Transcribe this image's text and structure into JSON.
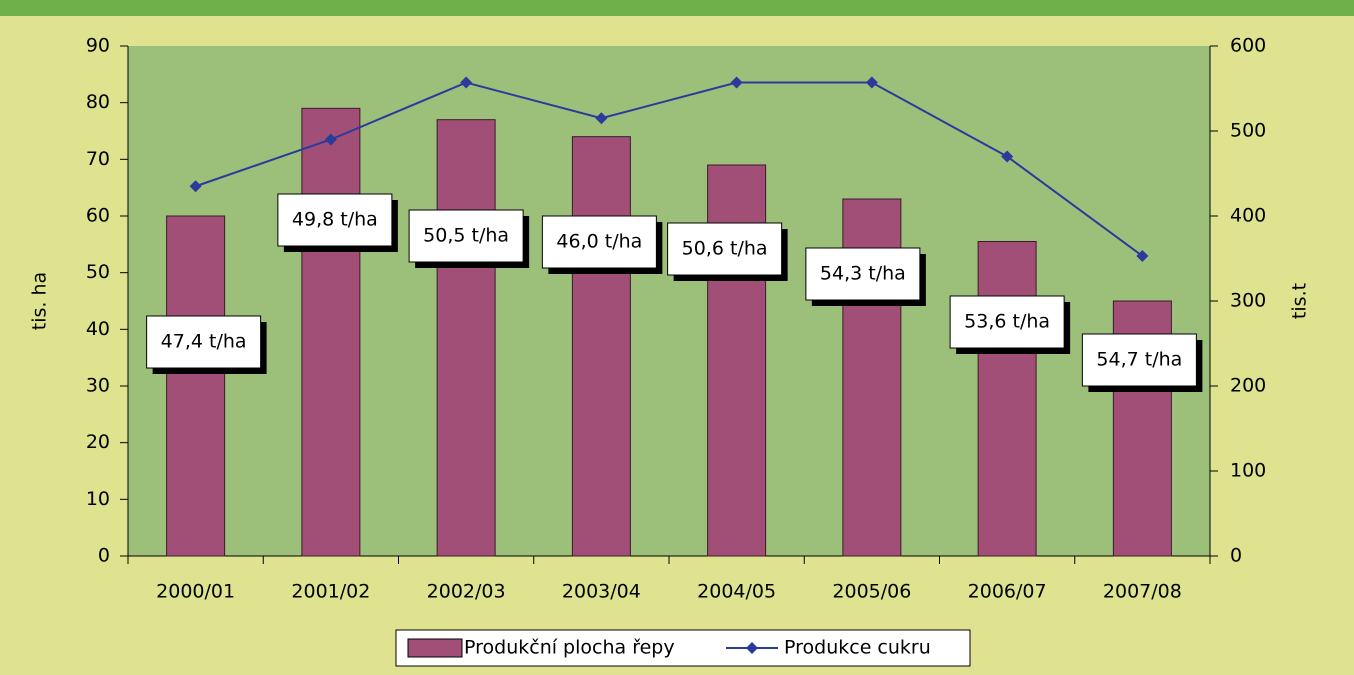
{
  "chart_data": {
    "type": "bar_line",
    "categories": [
      "2000/01",
      "2001/02",
      "2002/03",
      "2003/04",
      "2004/05",
      "2005/06",
      "2006/07",
      "2007/08"
    ],
    "series": [
      {
        "name": "Produkční plocha řepy",
        "type": "bar",
        "color": "#a24f78",
        "values": [
          60,
          79,
          77,
          74,
          69,
          63,
          55.5,
          45
        ]
      },
      {
        "name": "Produkce cukru",
        "type": "line",
        "axis": "y2",
        "color": "#2a3b9c",
        "values": [
          435,
          490,
          557,
          515,
          557,
          557,
          470,
          353
        ]
      }
    ],
    "annotations": [
      "47,4 t/ha",
      "49,8 t/ha",
      "50,5 t/ha",
      "46,0 t/ha",
      "50,6 t/ha",
      "54,3 t/ha",
      "53,6 t/ha",
      "54,7 t/ha"
    ],
    "ylabel": "tis. ha",
    "y2label": "tis.t",
    "ylim": [
      0,
      90
    ],
    "yticks": [
      0,
      10,
      20,
      30,
      40,
      50,
      60,
      70,
      80,
      90
    ],
    "y2lim": [
      0,
      600
    ],
    "y2ticks": [
      0,
      100,
      200,
      300,
      400,
      500,
      600
    ]
  }
}
